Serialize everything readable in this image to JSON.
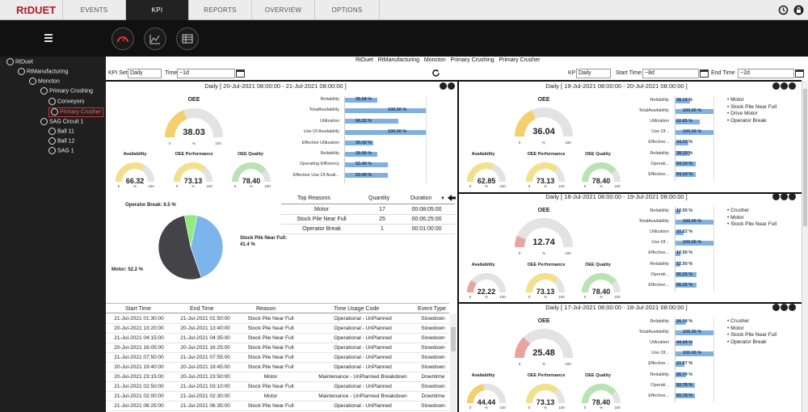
{
  "app": {
    "logo": "RtDUET"
  },
  "nav": {
    "tabs": [
      {
        "label": "EVENTS"
      },
      {
        "label": "KPI"
      },
      {
        "label": "REPORTS"
      },
      {
        "label": "OVERVIEW"
      },
      {
        "label": "OPTIONS"
      }
    ]
  },
  "tree": {
    "items": [
      {
        "label": "RtDuet"
      },
      {
        "label": "RtManufacturing"
      },
      {
        "label": "Moncton"
      },
      {
        "label": "Primary Crushing"
      },
      {
        "label": "Conveyors"
      },
      {
        "label": "Primary Crusher"
      },
      {
        "label": "SAG Circuit 1"
      },
      {
        "label": "Ball 11"
      },
      {
        "label": "Ball 12"
      },
      {
        "label": "SAG 1"
      }
    ]
  },
  "breadcrumb": {
    "items": [
      "RtDuet",
      "RtManufacturing",
      "Moncton",
      "Primary Crushing",
      "Primary Crusher"
    ]
  },
  "left_filter": {
    "kpi_set_label": "KPI Set",
    "kpi_set": "Daily",
    "time_label": "Time",
    "time": "~1d"
  },
  "right_filter": {
    "kpi_set_label": "KPI Set",
    "kpi_set": "Daily",
    "start_label": "Start Time",
    "start": "~8d",
    "end_label": "End Time",
    "end": "~2d"
  },
  "main_panel": {
    "header": "Daily  [ 20-Jul-2021 08:00:00  -  21-Jul-2021 08:00:00 ]",
    "oee": {
      "label": "OEE",
      "value": "38.03",
      "fraction": 0.3803
    },
    "availability": {
      "label": "Availability",
      "value": "66.32",
      "fraction": 0.6632
    },
    "performance": {
      "label": "OEE Performance",
      "value": "73.13",
      "fraction": 0.7313
    },
    "quality": {
      "label": "OEE Quality",
      "value": "78.40",
      "fraction": 0.784
    },
    "bars": [
      {
        "label": "Reliability",
        "value": 39.58,
        "text": "39.58 %"
      },
      {
        "label": "TotalAvailability",
        "value": 100.0,
        "text": "100.00 %"
      },
      {
        "label": "Utilization",
        "value": 66.32,
        "text": "66.32 %"
      },
      {
        "label": "Use Of Availability",
        "value": 100.0,
        "text": "100.00 %"
      },
      {
        "label": "Effective Utilization",
        "value": 35.42,
        "text": "35.42 %"
      },
      {
        "label": "Reliability",
        "value": 39.58,
        "text": "39.58 %"
      },
      {
        "label": "Operating Efficiency",
        "value": 53.4,
        "text": "53.40 %"
      },
      {
        "label": "Effective Use Of Avail...",
        "value": 53.4,
        "text": "53.40 %"
      }
    ],
    "pie": {
      "slices": [
        {
          "label": "Stock Pile Near Full: 41.4 %",
          "value": 41.4,
          "color": "#7cb5ec"
        },
        {
          "label": "Motor: 52.2 %",
          "value": 52.2,
          "color": "#434348"
        },
        {
          "label": "Operator Break: 6.5 %",
          "value": 6.5,
          "color": "#90ed7d"
        }
      ]
    },
    "reasons": {
      "headers": [
        "Top Reasons",
        "Quantity",
        "Duration"
      ],
      "rows": [
        [
          "Motor",
          "17",
          "00:08:05:00"
        ],
        [
          "Stock Pile Near Full",
          "25",
          "00:06:25:00"
        ],
        [
          "Operator Break",
          "1",
          "00:01:00:00"
        ]
      ]
    },
    "events": {
      "headers": [
        "Start Time",
        "End Time",
        "Reason",
        "Time Usage Code",
        "Event Type"
      ],
      "rows": [
        [
          "21-Jul-2021 01:30:00",
          "21-Jul-2021 01:50:00",
          "Stock Pile Near Full",
          "Operational - UnPlanned",
          "Slowdown"
        ],
        [
          "20-Jul-2021 13:20:00",
          "20-Jul-2021 13:40:00",
          "Stock Pile Near Full",
          "Operational - UnPlanned",
          "Slowdown"
        ],
        [
          "21-Jul-2021 04:15:00",
          "21-Jul-2021 04:35:00",
          "Stock Pile Near Full",
          "Operational - UnPlanned",
          "Slowdown"
        ],
        [
          "20-Jul-2021 16:05:00",
          "20-Jul-2021 16:25:00",
          "Stock Pile Near Full",
          "Operational - UnPlanned",
          "Slowdown"
        ],
        [
          "21-Jul-2021 07:50:00",
          "21-Jul-2021 07:55:00",
          "Stock Pile Near Full",
          "Operational - UnPlanned",
          "Slowdown"
        ],
        [
          "20-Jul-2021 19:40:00",
          "20-Jul-2021 19:45:00",
          "Stock Pile Near Full",
          "Operational - UnPlanned",
          "Slowdown"
        ],
        [
          "20-Jul-2021 23:15:00",
          "20-Jul-2021 23:50:00",
          "Motor",
          "Maintenance - UnPlanned Breakdown",
          "Downtime"
        ],
        [
          "21-Jul-2021 02:50:00",
          "21-Jul-2021 03:10:00",
          "Stock Pile Near Full",
          "Operational - UnPlanned",
          "Slowdown"
        ],
        [
          "21-Jul-2021 02:00:00",
          "21-Jul-2021 02:30:00",
          "Motor",
          "Maintenance - UnPlanned Breakdown",
          "Downtime"
        ],
        [
          "21-Jul-2021 06:25:00",
          "21-Jul-2021 06:35:00",
          "Stock Pile Near Full",
          "Operational - UnPlanned",
          "Slowdown"
        ]
      ]
    }
  },
  "side_panels": [
    {
      "header": "Daily  [ 19-Jul-2021 08:00:00  -  20-Jul-2021 08:00:00 ]",
      "oee": {
        "label": "OEE",
        "value": "36.04",
        "fraction": 0.3604
      },
      "availability": {
        "label": "Availability",
        "value": "62.85",
        "fraction": 0.6285
      },
      "performance": {
        "label": "OEE Performance",
        "value": "73.13",
        "fraction": 0.7313
      },
      "quality": {
        "label": "OEE Quality",
        "value": "78.40",
        "fraction": 0.784
      },
      "bars": [
        {
          "label": "Reliability",
          "value": 38.19,
          "text": "38.19 %"
        },
        {
          "label": "TotalAvailability",
          "value": 100,
          "text": "100.00 %"
        },
        {
          "label": "Utilization",
          "value": 62.85,
          "text": "62.85 %"
        },
        {
          "label": "Use Of...",
          "value": 100,
          "text": "100.00 %"
        },
        {
          "label": "Effective...",
          "value": 34.03,
          "text": "34.03 %"
        },
        {
          "label": "Reliability",
          "value": 38.19,
          "text": "38.19 %"
        },
        {
          "label": "Operati...",
          "value": 54.14,
          "text": "54.14 %"
        },
        {
          "label": "Effective...",
          "value": 54.14,
          "text": "54.14 %"
        }
      ],
      "reasons": [
        "Motor",
        "Stock Pile Near Full",
        "Drive Motor",
        "Operator Break"
      ]
    },
    {
      "header": "Daily  [ 18-Jul-2021 08:00:00  -  19-Jul-2021 08:00:00 ]",
      "oee": {
        "label": "OEE",
        "value": "12.74",
        "fraction": 0.1274
      },
      "availability": {
        "label": "Availability",
        "value": "22.22",
        "fraction": 0.2222
      },
      "performance": {
        "label": "OEE Performance",
        "value": "73.13",
        "fraction": 0.7313
      },
      "quality": {
        "label": "OEE Quality",
        "value": "78.40",
        "fraction": 0.784
      },
      "bars": [
        {
          "label": "Reliability",
          "value": 12.5,
          "text": "12.50 %"
        },
        {
          "label": "TotalAvailability",
          "value": 100,
          "text": "100.00 %"
        },
        {
          "label": "Utilization",
          "value": 22.22,
          "text": "22.22 %"
        },
        {
          "label": "Use Of...",
          "value": 100,
          "text": "100.00 %"
        },
        {
          "label": "Effective...",
          "value": 12.5,
          "text": "12.50 %"
        },
        {
          "label": "Reliability",
          "value": 12.5,
          "text": "12.50 %"
        },
        {
          "label": "Operati...",
          "value": 56.25,
          "text": "56.25 %"
        },
        {
          "label": "Effective...",
          "value": 56.25,
          "text": "56.25 %"
        }
      ],
      "reasons": [
        "Crusher",
        "Motor",
        "Stock Pile Near Full"
      ]
    },
    {
      "header": "Daily  [ 17-Jul-2021 08:00:00  -  18-Jul-2021 08:00:00 ]",
      "oee": {
        "label": "OEE",
        "value": "25.48",
        "fraction": 0.2548
      },
      "availability": {
        "label": "Availability",
        "value": "44.44",
        "fraction": 0.4444
      },
      "performance": {
        "label": "OEE Performance",
        "value": "73.13",
        "fraction": 0.7313
      },
      "quality": {
        "label": "OEE Quality",
        "value": "78.40",
        "fraction": 0.784
      },
      "bars": [
        {
          "label": "Reliability",
          "value": 26.74,
          "text": "26.74 %"
        },
        {
          "label": "TotalAvailability",
          "value": 100,
          "text": "100.00 %"
        },
        {
          "label": "Utilization",
          "value": 44.44,
          "text": "44.44 %"
        },
        {
          "label": "Use Of...",
          "value": 100,
          "text": "100.00 %"
        },
        {
          "label": "Effective...",
          "value": 22.57,
          "text": "22.57 %"
        },
        {
          "label": "Reliability",
          "value": 26.74,
          "text": "26.74 %"
        },
        {
          "label": "Operati...",
          "value": 50.78,
          "text": "50.78 %"
        },
        {
          "label": "Effective...",
          "value": 50.78,
          "text": "50.78 %"
        }
      ],
      "reasons": [
        "Crusher",
        "Motor",
        "Stock Pile Near Full",
        "Operator Break"
      ]
    }
  ],
  "gauge_ticks": {
    "min": "0",
    "unit": "%",
    "max": "100"
  }
}
